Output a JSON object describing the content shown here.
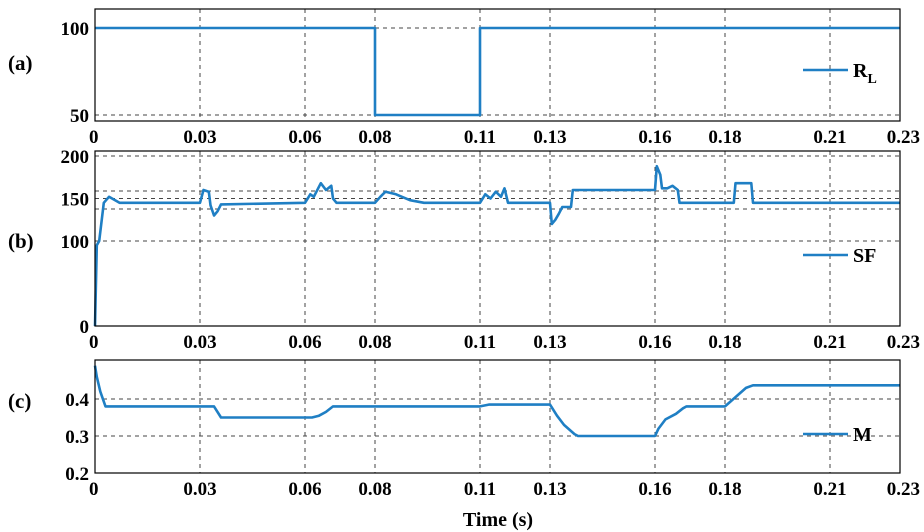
{
  "chart_data": [
    {
      "type": "line",
      "panel_label": "(a)",
      "xlim": [
        0,
        0.23
      ],
      "ylim": [
        45,
        103
      ],
      "grid": true,
      "legend_position": "right",
      "x_ticks": [
        "0",
        "0.03",
        "0.06",
        "0.08",
        "0.11",
        "0.13",
        "0.16",
        "0.18",
        "0.21",
        "0.23"
      ],
      "y_ticks": [
        "100",
        "50"
      ],
      "series": [
        {
          "name": "R",
          "name_subscript": "L",
          "color": "#1f7fc4",
          "x": [
            0,
            0.08,
            0.08,
            0.11,
            0.11,
            0.23
          ],
          "y": [
            100,
            100,
            50,
            50,
            100,
            100
          ]
        }
      ]
    },
    {
      "type": "line",
      "panel_label": "(b)",
      "xlim": [
        0,
        0.23
      ],
      "ylim": [
        0,
        200
      ],
      "grid": true,
      "legend_position": "right",
      "x_ticks": [
        "0",
        "0.03",
        "0.06",
        "0.08",
        "0.11",
        "0.13",
        "0.16",
        "0.18",
        "0.21",
        "0.23"
      ],
      "y_ticks": [
        "200",
        "150",
        "100",
        "0"
      ],
      "series": [
        {
          "name": "SF",
          "color": "#1f7fc4",
          "x": [
            0,
            0.0005,
            0.0012,
            0.0025,
            0.004,
            0.007,
            0.03,
            0.031,
            0.0325,
            0.033,
            0.034,
            0.035,
            0.036,
            0.06,
            0.0615,
            0.0625,
            0.0645,
            0.066,
            0.0675,
            0.068,
            0.069,
            0.08,
            0.0815,
            0.083,
            0.086,
            0.09,
            0.094,
            0.11,
            0.1115,
            0.113,
            0.1145,
            0.116,
            0.117,
            0.118,
            0.13,
            0.1305,
            0.1315,
            0.1325,
            0.1335,
            0.136,
            0.1365,
            0.16,
            0.1605,
            0.1615,
            0.162,
            0.1635,
            0.165,
            0.1665,
            0.167,
            0.1675,
            0.1825,
            0.183,
            0.1875,
            0.188,
            0.23
          ],
          "y": [
            0,
            95,
            100,
            145,
            152,
            145,
            145,
            160,
            158,
            142,
            130,
            135,
            143,
            145,
            155,
            152,
            168,
            160,
            165,
            150,
            145,
            145,
            152,
            158,
            155,
            148,
            145,
            145,
            155,
            150,
            158,
            152,
            162,
            145,
            145,
            120,
            125,
            132,
            140,
            140,
            160,
            160,
            188,
            178,
            162,
            162,
            165,
            160,
            145,
            145,
            145,
            168,
            168,
            145,
            145
          ]
        }
      ]
    },
    {
      "type": "line",
      "panel_label": "(c)",
      "xlim": [
        0,
        0.23
      ],
      "ylim": [
        0.2,
        0.5
      ],
      "grid": true,
      "legend_position": "right",
      "x_ticks": [
        "0",
        "0.03",
        "0.06",
        "0.08",
        "0.11",
        "0.13",
        "0.16",
        "0.18",
        "0.21",
        "0.23"
      ],
      "y_ticks": [
        "0.4",
        "0.3",
        "0.2"
      ],
      "xlabel": "Time (s)",
      "series": [
        {
          "name": "M",
          "color": "#1f7fc4",
          "x": [
            0,
            0.0005,
            0.0015,
            0.003,
            0.034,
            0.036,
            0.062,
            0.064,
            0.066,
            0.068,
            0.11,
            0.1125,
            0.13,
            0.132,
            0.134,
            0.137,
            0.138,
            0.16,
            0.161,
            0.163,
            0.166,
            0.168,
            0.169,
            0.18,
            0.183,
            0.186,
            0.188,
            0.23
          ],
          "y": [
            0.49,
            0.46,
            0.42,
            0.38,
            0.38,
            0.35,
            0.35,
            0.355,
            0.365,
            0.38,
            0.38,
            0.385,
            0.385,
            0.355,
            0.33,
            0.305,
            0.3,
            0.3,
            0.32,
            0.345,
            0.36,
            0.375,
            0.38,
            0.38,
            0.405,
            0.43,
            0.437,
            0.437
          ]
        }
      ]
    }
  ]
}
